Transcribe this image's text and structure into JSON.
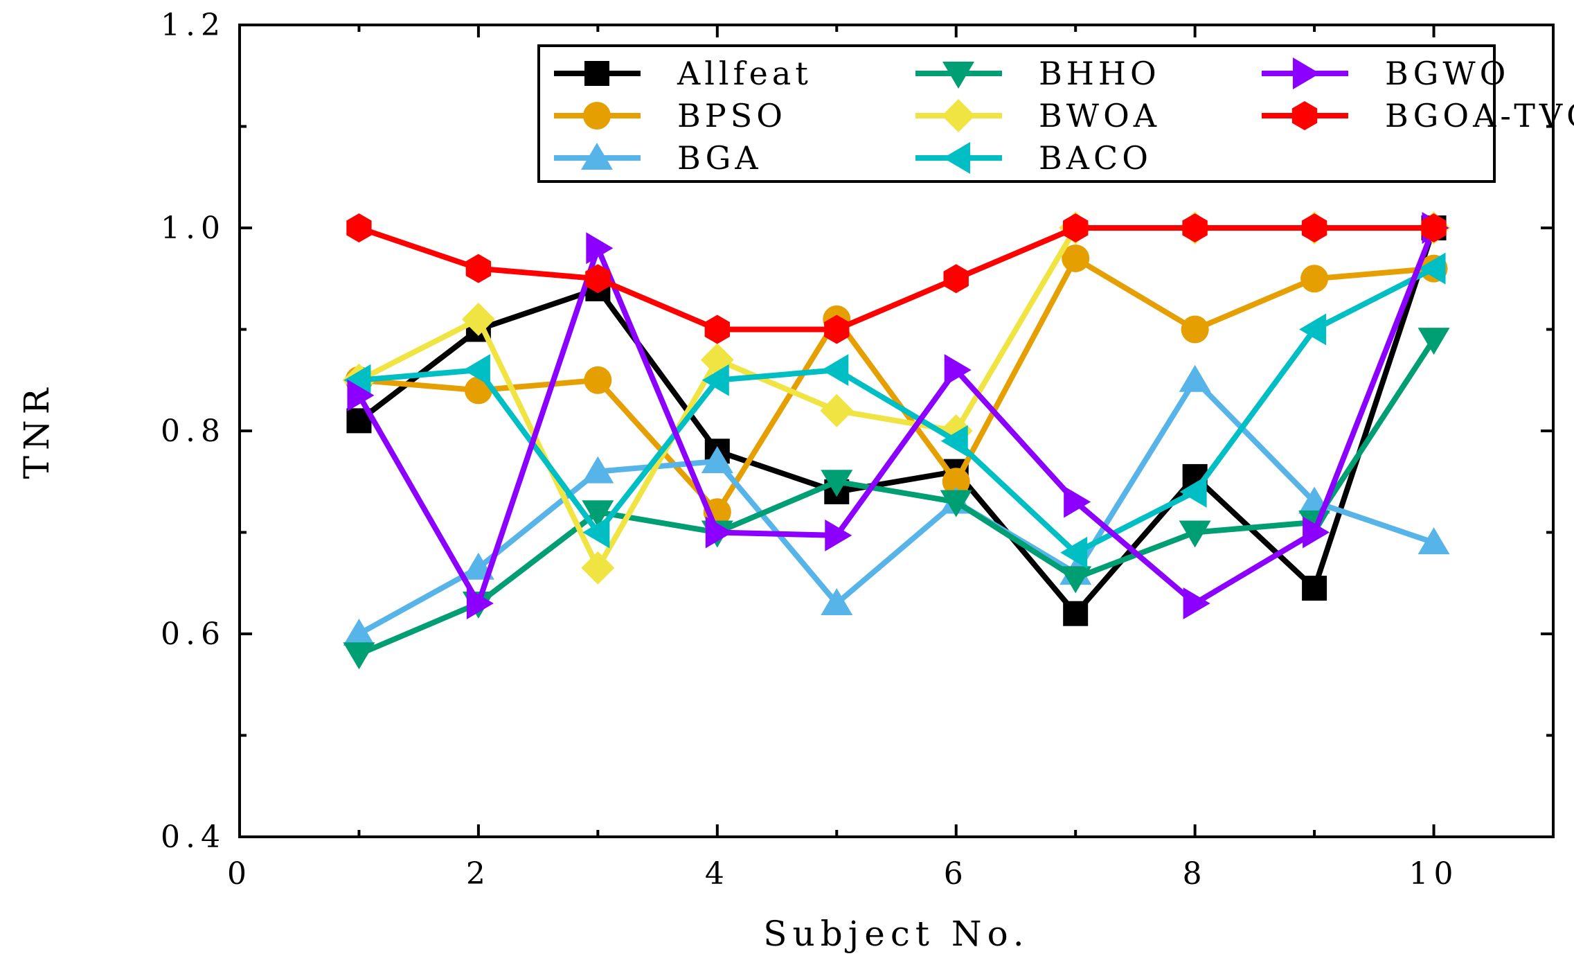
{
  "chart_data": {
    "type": "line",
    "xlabel": "Subject No.",
    "ylabel": "TNR",
    "xlim": [
      0,
      11
    ],
    "ylim": [
      0.4,
      1.2
    ],
    "xticks": [
      {
        "value": 0,
        "label": "0"
      },
      {
        "value": 2,
        "label": "2"
      },
      {
        "value": 4,
        "label": "4"
      },
      {
        "value": 6,
        "label": "6"
      },
      {
        "value": 8,
        "label": "8"
      },
      {
        "value": 10,
        "label": "10"
      }
    ],
    "yticks": [
      {
        "value": 0.4,
        "label": "0.4"
      },
      {
        "value": 0.6,
        "label": "0.6"
      },
      {
        "value": 0.8,
        "label": "0.8"
      },
      {
        "value": 1.0,
        "label": "1.0"
      },
      {
        "value": 1.2,
        "label": "1.2"
      }
    ],
    "grid": false,
    "legend_position": "top-right",
    "x": [
      1,
      2,
      3,
      4,
      5,
      6,
      7,
      8,
      9,
      10
    ],
    "series": [
      {
        "name": "Allfeat",
        "color": "#000000",
        "marker": "square",
        "values": [
          0.81,
          0.9,
          0.94,
          0.78,
          0.74,
          0.76,
          0.62,
          0.755,
          0.645,
          1.0
        ]
      },
      {
        "name": "BPSO",
        "color": "#E69F00",
        "marker": "circle",
        "values": [
          0.85,
          0.84,
          0.85,
          0.72,
          0.91,
          0.75,
          0.97,
          0.9,
          0.95,
          0.96
        ]
      },
      {
        "name": "BGA",
        "color": "#56B4E9",
        "marker": "triangle-up",
        "values": [
          0.6,
          0.665,
          0.76,
          0.77,
          0.63,
          0.73,
          0.66,
          0.85,
          0.73,
          0.69
        ]
      },
      {
        "name": "BHHO",
        "color": "#009E73",
        "marker": "triangle-down",
        "values": [
          0.58,
          0.63,
          0.72,
          0.7,
          0.75,
          0.73,
          0.655,
          0.7,
          0.71,
          0.89
        ]
      },
      {
        "name": "BWOA",
        "color": "#F0E442",
        "marker": "diamond",
        "values": [
          0.85,
          0.91,
          0.665,
          0.87,
          0.82,
          0.8,
          1.0,
          1.0,
          1.0,
          1.0
        ]
      },
      {
        "name": "BACO",
        "color": "#00BFC4",
        "marker": "triangle-left",
        "values": [
          0.85,
          0.86,
          0.7,
          0.85,
          0.86,
          0.79,
          0.68,
          0.74,
          0.9,
          0.96
        ]
      },
      {
        "name": "BGWO",
        "color": "#8B00FF",
        "marker": "triangle-right",
        "values": [
          0.835,
          0.63,
          0.98,
          0.7,
          0.697,
          0.86,
          0.73,
          0.63,
          0.7,
          1.0
        ]
      },
      {
        "name": "BGOA-TVG",
        "color": "#FF0000",
        "marker": "hexagon",
        "values": [
          1.0,
          0.96,
          0.95,
          0.9,
          0.9,
          0.95,
          1.0,
          1.0,
          1.0,
          1.0
        ]
      }
    ]
  }
}
